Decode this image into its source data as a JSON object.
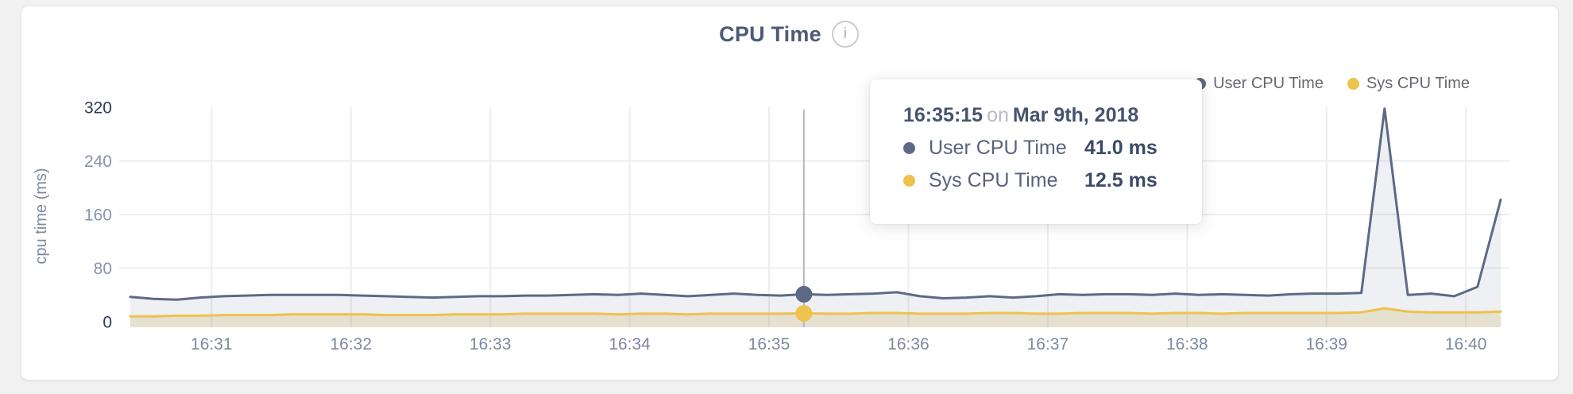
{
  "header": {
    "title": "CPU Time",
    "info_icon_glyph": "i"
  },
  "legend": {
    "items": [
      {
        "label": "User CPU Time",
        "color": "#5d6a87"
      },
      {
        "label": "Sys CPU Time",
        "color": "#edc24d"
      }
    ]
  },
  "tooltip": {
    "time": "16:35:15",
    "connector": "on",
    "date": "Mar 9th, 2018",
    "rows": [
      {
        "label": "User CPU Time",
        "value": "41.0 ms",
        "color": "#5d6a87"
      },
      {
        "label": "Sys CPU Time",
        "value": "12.5 ms",
        "color": "#edc24d"
      }
    ]
  },
  "chart_data": {
    "type": "area",
    "title": "CPU Time",
    "ylabel": "cpu time (ms)",
    "ylim": [
      0,
      320
    ],
    "yticks": [
      0,
      80,
      160,
      240,
      320
    ],
    "ytick_emphasized": [
      0,
      320
    ],
    "xticks": [
      "16:31",
      "16:32",
      "16:33",
      "16:34",
      "16:35",
      "16:36",
      "16:37",
      "16:38",
      "16:39",
      "16:40"
    ],
    "grid": true,
    "legend_position": "top-right",
    "date": "Mar 9th, 2018",
    "interval_seconds": 10,
    "x": [
      "16:30:25",
      "16:30:35",
      "16:30:45",
      "16:30:55",
      "16:31:05",
      "16:31:15",
      "16:31:25",
      "16:31:35",
      "16:31:45",
      "16:31:55",
      "16:32:05",
      "16:32:15",
      "16:32:25",
      "16:32:35",
      "16:32:45",
      "16:32:55",
      "16:33:05",
      "16:33:15",
      "16:33:25",
      "16:33:35",
      "16:33:45",
      "16:33:55",
      "16:34:05",
      "16:34:15",
      "16:34:25",
      "16:34:35",
      "16:34:45",
      "16:34:55",
      "16:35:05",
      "16:35:15",
      "16:35:25",
      "16:35:35",
      "16:35:45",
      "16:35:55",
      "16:36:05",
      "16:36:15",
      "16:36:25",
      "16:36:35",
      "16:36:45",
      "16:36:55",
      "16:37:05",
      "16:37:15",
      "16:37:25",
      "16:37:35",
      "16:37:45",
      "16:37:55",
      "16:38:05",
      "16:38:15",
      "16:38:25",
      "16:38:35",
      "16:38:45",
      "16:38:55",
      "16:39:05",
      "16:39:15",
      "16:39:25",
      "16:39:35",
      "16:39:45",
      "16:39:55",
      "16:40:05",
      "16:40:15"
    ],
    "series": [
      {
        "name": "User CPU Time",
        "color": "#5d6a87",
        "fill": "rgba(96,108,136,0.10)",
        "values": [
          37,
          34,
          33,
          36,
          38,
          39,
          40,
          40,
          40,
          40,
          39,
          38,
          37,
          36,
          37,
          38,
          38,
          39,
          39,
          40,
          41,
          40,
          42,
          40,
          38,
          40,
          42,
          40,
          39,
          41,
          40,
          41,
          42,
          44,
          38,
          35,
          36,
          38,
          36,
          38,
          41,
          40,
          41,
          41,
          40,
          42,
          40,
          41,
          40,
          39,
          41,
          42,
          42,
          43,
          318,
          40,
          42,
          38,
          52,
          182
        ]
      },
      {
        "name": "Sys CPU Time",
        "color": "#edc24d",
        "fill": "rgba(205,182,118,0.28)",
        "values": [
          8,
          8,
          9,
          9,
          10,
          10,
          10,
          11,
          11,
          11,
          11,
          10,
          10,
          10,
          11,
          11,
          11,
          12,
          12,
          12,
          12,
          11,
          12,
          12,
          11,
          12,
          12,
          12,
          12,
          12.5,
          12,
          12,
          13,
          13,
          12,
          12,
          12,
          13,
          13,
          12,
          12,
          13,
          13,
          13,
          12,
          13,
          13,
          12,
          13,
          13,
          13,
          13,
          13,
          14,
          20,
          15,
          14,
          14,
          14,
          15
        ]
      }
    ],
    "highlight": {
      "time": "16:35:15",
      "date": "Mar 9th, 2018",
      "user_cpu_ms": 41.0,
      "sys_cpu_ms": 12.5
    }
  }
}
